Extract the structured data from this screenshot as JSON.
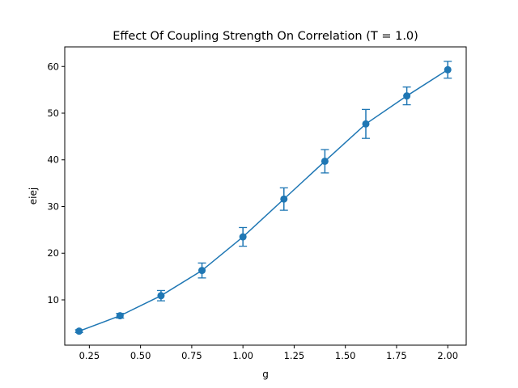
{
  "chart_data": {
    "type": "line",
    "title": "Effect Of Coupling Strength On Correlation (T = 1.0)",
    "xlabel": "g",
    "ylabel": "eiej",
    "xlim": [
      0.13,
      2.09
    ],
    "ylim": [
      0.3,
      64.2
    ],
    "x_ticks": [
      0.25,
      0.5,
      0.75,
      1.0,
      1.25,
      1.5,
      1.75,
      2.0
    ],
    "x_tick_labels": [
      "0.25",
      "0.50",
      "0.75",
      "1.00",
      "1.25",
      "1.50",
      "1.75",
      "2.00"
    ],
    "y_ticks": [
      10,
      20,
      30,
      40,
      50,
      60
    ],
    "y_tick_labels": [
      "10",
      "20",
      "30",
      "40",
      "50",
      "60"
    ],
    "grid": false,
    "legend": "none",
    "color": "#1f77b4",
    "series": [
      {
        "x": [
          0.2,
          0.4,
          0.6,
          0.8,
          1.0,
          1.2,
          1.4,
          1.6,
          1.8,
          2.0
        ],
        "y": [
          3.3,
          6.6,
          10.9,
          16.3,
          23.5,
          31.6,
          39.7,
          47.7,
          53.7,
          59.3
        ],
        "yerr": [
          0.3,
          0.5,
          1.1,
          1.6,
          2.0,
          2.4,
          2.5,
          3.1,
          1.9,
          1.8
        ]
      }
    ]
  }
}
